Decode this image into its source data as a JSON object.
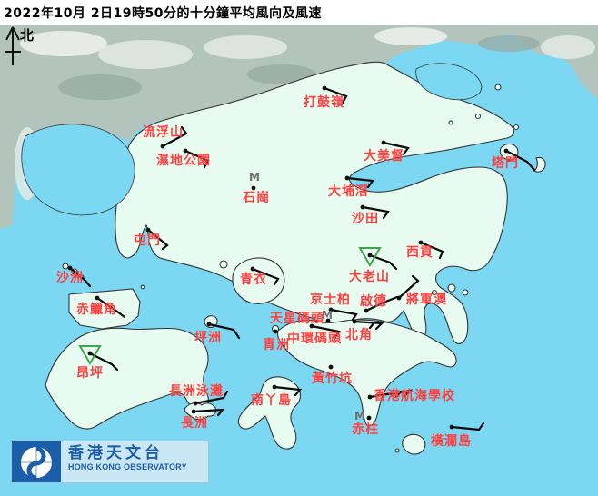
{
  "title": "2022年10月  2日19時50分的十分鐘平均風向及風速",
  "compass": {
    "north_label": "北"
  },
  "legend": {
    "missing_marker": "M"
  },
  "logo": {
    "chinese": "香港天文台",
    "english": "HONG KONG OBSERVATORY"
  },
  "colors": {
    "sea": "#7CD8F2",
    "land": "#E7FBF1",
    "mainland": "#B2C4BC",
    "coast": "#333333",
    "station_label": "#FF4040",
    "barb": "#0A0A0A",
    "dot": "#111111",
    "m_marker": "#6F6F6F",
    "triangle": "#3FA44C",
    "logo_bg": "#C9E6F4",
    "logo_blue": "#1A5DA8",
    "title": "#000000"
  },
  "stations": [
    {
      "name": "打鼓嶺",
      "dot": [
        357,
        97
      ],
      "label": [
        334,
        106
      ],
      "barbs": [
        [
          [
            357,
            97
          ],
          [
            381,
            106
          ],
          [
            377,
            113
          ]
        ]
      ]
    },
    {
      "name": "流浮山",
      "dot": [
        179,
        161
      ],
      "label": [
        157,
        139
      ],
      "barbs": [
        [
          [
            179,
            161
          ],
          [
            205,
            147
          ],
          [
            200,
            140
          ]
        ]
      ]
    },
    {
      "name": "濕地公園",
      "dot": [
        204,
        166
      ],
      "label": [
        172,
        170
      ],
      "barbs": [
        [
          [
            204,
            166
          ],
          [
            229,
            177
          ],
          [
            225,
            184
          ]
        ]
      ]
    },
    {
      "name": "石崗",
      "dot": [
        279,
        207
      ],
      "label": [
        267,
        211
      ],
      "m": [
        280,
        195
      ]
    },
    {
      "name": "大美督",
      "dot": [
        422,
        157
      ],
      "label": [
        400,
        165
      ],
      "barbs": [
        [
          [
            422,
            157
          ],
          [
            449,
            163
          ],
          [
            444,
            170
          ]
        ]
      ]
    },
    {
      "name": "塔門",
      "dot": [
        557,
        166
      ],
      "label": [
        541,
        173
      ],
      "barbs": [
        [
          [
            557,
            166
          ],
          [
            580,
            178
          ],
          [
            588,
            187
          ]
        ]
      ]
    },
    {
      "name": "大埔滘",
      "dot": [
        382,
        196
      ],
      "label": [
        361,
        204
      ],
      "barbs": [
        [
          [
            382,
            196
          ],
          [
            410,
            199
          ],
          [
            405,
            206
          ]
        ]
      ]
    },
    {
      "name": "沙田",
      "dot": [
        399,
        228
      ],
      "label": [
        387,
        234
      ],
      "barbs": [
        [
          [
            399,
            228
          ],
          [
            427,
            233
          ],
          [
            422,
            240
          ]
        ]
      ]
    },
    {
      "name": "屯門",
      "dot": [
        163,
        253
      ],
      "label": [
        147,
        258
      ],
      "barbs": [
        [
          [
            163,
            253
          ],
          [
            184,
            270
          ],
          [
            179,
            274
          ]
        ]
      ]
    },
    {
      "name": "沙洲",
      "dot": [
        77,
        295
      ],
      "label": [
        62,
        299
      ],
      "barbs": [
        [
          [
            77,
            295
          ],
          [
            93,
            308
          ],
          [
            99,
            315
          ]
        ]
      ]
    },
    {
      "name": "赤鱲角",
      "dot": [
        107,
        328
      ],
      "label": [
        84,
        334
      ],
      "barbs": [
        [
          [
            107,
            328
          ],
          [
            129,
            343
          ],
          [
            137,
            349
          ]
        ]
      ]
    },
    {
      "name": "青衣",
      "dot": [
        278,
        296
      ],
      "label": [
        264,
        301
      ],
      "barbs": [
        [
          [
            278,
            296
          ],
          [
            306,
            307
          ],
          [
            302,
            313
          ]
        ]
      ]
    },
    {
      "name": "坪洲",
      "dot": [
        230,
        357
      ],
      "label": [
        214,
        365
      ],
      "barbs": [
        [
          [
            230,
            357
          ],
          [
            257,
            363
          ],
          [
            263,
            372
          ]
        ]
      ]
    },
    {
      "name": "大老山",
      "dot": [
        407,
        281
      ],
      "label": [
        384,
        298
      ],
      "triangle": true,
      "barbs": [
        [
          [
            407,
            281
          ],
          [
            429,
            289
          ],
          [
            436,
            296
          ]
        ]
      ]
    },
    {
      "name": "西貢",
      "dot": [
        463,
        267
      ],
      "label": [
        447,
        271
      ],
      "barbs": [
        [
          [
            463,
            267
          ],
          [
            487,
            277
          ],
          [
            484,
            284
          ]
        ]
      ]
    },
    {
      "name": "將軍澳",
      "dot": [
        439,
        328
      ],
      "label": [
        447,
        323
      ],
      "barbs": [
        [
          [
            439,
            328
          ],
          [
            460,
            309
          ],
          [
            454,
            304
          ]
        ]
      ]
    },
    {
      "name": "京士柏",
      "dot": [
        364,
        341
      ],
      "label": [
        341,
        323
      ],
      "barbs": [
        [
          [
            364,
            341
          ],
          [
            392,
            346
          ],
          [
            388,
            352
          ]
        ]
      ]
    },
    {
      "name": "啟德",
      "dot": [
        403,
        342
      ],
      "label": [
        396,
        325
      ],
      "barbs": [
        [
          [
            403,
            342
          ],
          [
            422,
            333
          ],
          [
            437,
            327
          ]
        ]
      ]
    },
    {
      "name": "天星碼頭",
      "dot": [
        361,
        353
      ],
      "label": [
        297,
        344
      ],
      "m": [
        360,
        347
      ]
    },
    {
      "name": "中環碼頭",
      "dot": [
        343,
        359
      ],
      "label": [
        316,
        366
      ],
      "barbs": [
        [
          [
            343,
            359
          ],
          [
            373,
            365
          ],
          [
            369,
            371
          ]
        ]
      ]
    },
    {
      "name": "北角",
      "dot": [
        390,
        354
      ],
      "label": [
        380,
        362
      ],
      "barbs": [
        [
          [
            390,
            354
          ],
          [
            420,
            356
          ],
          [
            414,
            362
          ]
        ],
        [
          [
            412,
            355
          ],
          [
            407,
            361
          ]
        ]
      ]
    },
    {
      "name": "青洲",
      "dot": [
        303,
        365
      ],
      "label": [
        289,
        373
      ]
    },
    {
      "name": "黃竹坑",
      "dot": [
        364,
        404
      ],
      "label": [
        343,
        410
      ]
    },
    {
      "name": "昂坪",
      "dot": [
        99,
        389
      ],
      "label": [
        84,
        404
      ],
      "triangle": true,
      "barbs": [
        [
          [
            99,
            389
          ],
          [
            123,
            401
          ],
          [
            129,
            407
          ]
        ]
      ]
    },
    {
      "name": "長洲泳灘",
      "dot": [
        215,
        444
      ],
      "label": [
        186,
        424
      ],
      "barbs": [
        [
          [
            215,
            444
          ],
          [
            246,
            438
          ],
          [
            250,
            431
          ]
        ]
      ]
    },
    {
      "name": "長洲",
      "dot": [
        213,
        453
      ],
      "label": [
        199,
        459
      ],
      "barbs": [
        [
          [
            213,
            453
          ],
          [
            245,
            451
          ],
          [
            240,
            457
          ]
        ]
      ]
    },
    {
      "name": "南丫島",
      "dot": [
        302,
        426
      ],
      "label": [
        276,
        434
      ],
      "barbs": [
        [
          [
            302,
            426
          ],
          [
            330,
            429
          ],
          [
            325,
            435
          ]
        ]
      ]
    },
    {
      "name": "香港航海學校",
      "dot": [
        407,
        437
      ],
      "label": [
        411,
        429
      ],
      "barbs": [
        [
          [
            407,
            437
          ],
          [
            451,
            430
          ],
          [
            445,
            436
          ]
        ],
        [
          [
            441,
            431
          ],
          [
            436,
            437
          ]
        ]
      ]
    },
    {
      "name": "赤柱",
      "dot": [
        406,
        460
      ],
      "label": [
        387,
        466
      ],
      "m": [
        396,
        458
      ]
    },
    {
      "name": "橫瀾島",
      "dot": [
        497,
        470
      ],
      "label": [
        474,
        479
      ],
      "barbs": [
        [
          [
            497,
            470
          ],
          [
            527,
            473
          ],
          [
            532,
            466
          ]
        ]
      ]
    }
  ]
}
